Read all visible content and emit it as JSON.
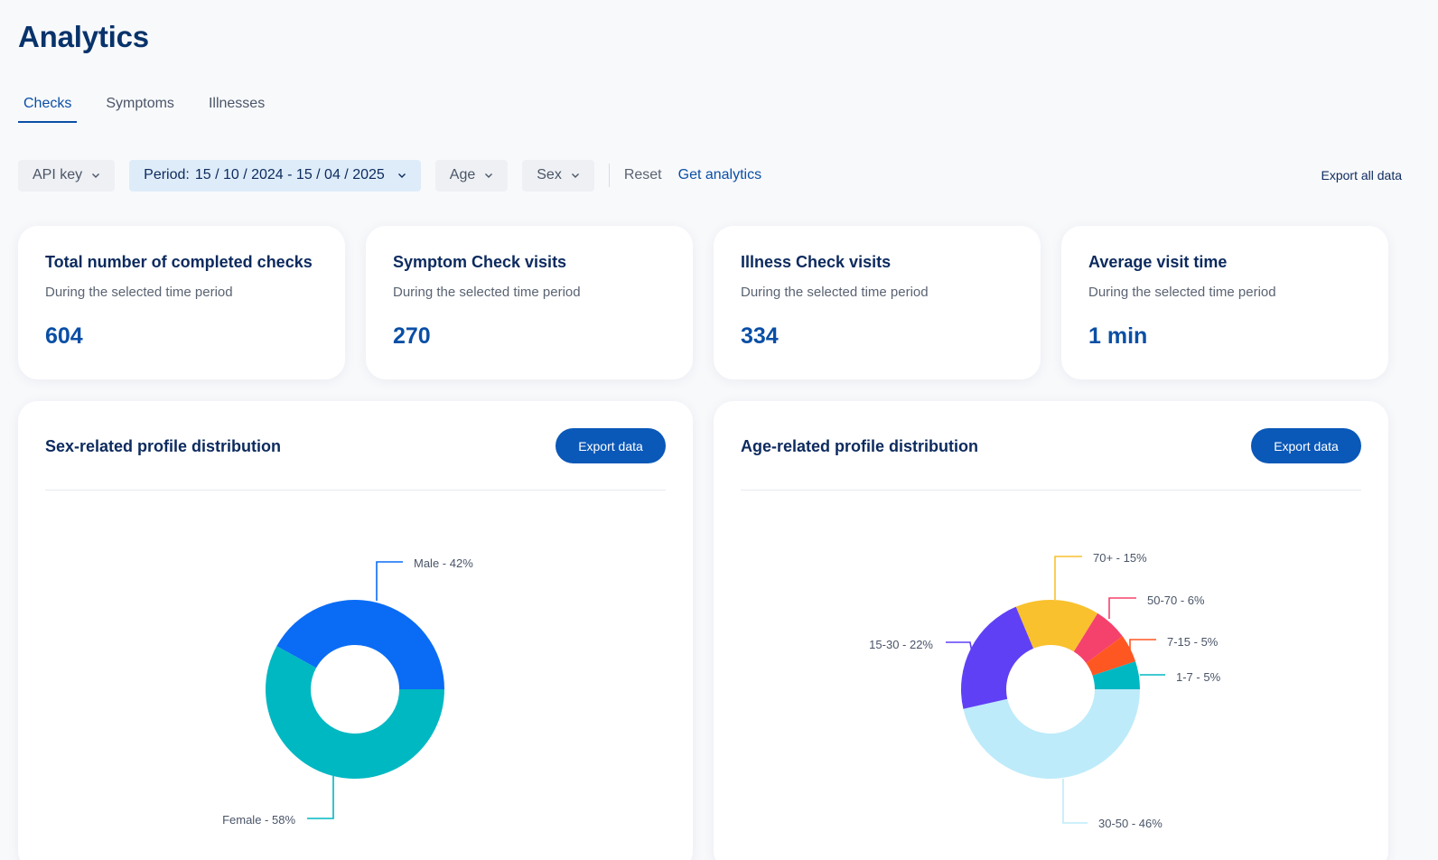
{
  "page": {
    "title": "Analytics"
  },
  "tabs": [
    {
      "label": "Checks",
      "active": true
    },
    {
      "label": "Symptoms",
      "active": false
    },
    {
      "label": "Illnesses",
      "active": false
    }
  ],
  "filters": {
    "api_key": "API key",
    "period_label": "Period:",
    "period_value": "15 / 10 / 2024 - 15 / 04 / 2025",
    "age": "Age",
    "sex": "Sex",
    "reset": "Reset",
    "get_analytics": "Get analytics",
    "export_all": "Export all data"
  },
  "stats": [
    {
      "title": "Total number of completed checks",
      "subtitle": "During the selected time period",
      "value": "604"
    },
    {
      "title": "Symptom Check visits",
      "subtitle": "During the selected time period",
      "value": "270"
    },
    {
      "title": "Illness Check visits",
      "subtitle": "During the selected time period",
      "value": "334"
    },
    {
      "title": "Average visit time",
      "subtitle": "During the selected time period",
      "value": "1 min"
    }
  ],
  "charts": {
    "sex": {
      "title": "Sex-related profile distribution",
      "export_label": "Export data"
    },
    "age": {
      "title": "Age-related profile distribution",
      "export_label": "Export data"
    }
  },
  "colors": {
    "primary": "#0a58b8",
    "male": "#0a6cf5",
    "female": "#00b8c2",
    "age_70plus": "#f9c12e",
    "age_50_70": "#f5426c",
    "age_7_15": "#ff5722",
    "age_1_7": "#00b8c2",
    "age_30_50": "#bdebfa",
    "age_15_30": "#6040f5"
  },
  "chart_data": [
    {
      "type": "pie",
      "title": "Sex-related profile distribution",
      "series": [
        {
          "name": "Male",
          "value": 42,
          "label": "Male - 42%",
          "color": "#0a6cf5"
        },
        {
          "name": "Female",
          "value": 58,
          "label": "Female - 58%",
          "color": "#00b8c2"
        }
      ]
    },
    {
      "type": "pie",
      "title": "Age-related profile distribution",
      "series": [
        {
          "name": "1-7",
          "value": 5,
          "label": "1-7 - 5%",
          "color": "#00b8c2"
        },
        {
          "name": "7-15",
          "value": 5,
          "label": "7-15 - 5%",
          "color": "#ff5722"
        },
        {
          "name": "50-70",
          "value": 6,
          "label": "50-70 - 6%",
          "color": "#f5426c"
        },
        {
          "name": "70+",
          "value": 15,
          "label": "70+ - 15%",
          "color": "#f9c12e"
        },
        {
          "name": "15-30",
          "value": 22,
          "label": "15-30 - 22%",
          "color": "#6040f5"
        },
        {
          "name": "30-50",
          "value": 46,
          "label": "30-50 - 46%",
          "color": "#bdebfa"
        }
      ]
    }
  ]
}
